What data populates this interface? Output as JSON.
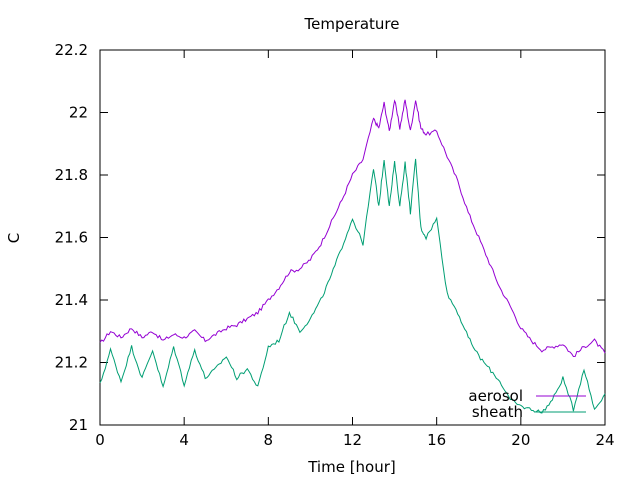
{
  "chart_data": {
    "type": "line",
    "title": "Temperature",
    "xlabel": "Time [hour]",
    "ylabel": "C",
    "xlim": [
      0,
      24
    ],
    "ylim": [
      21,
      22.2
    ],
    "xticks": [
      0,
      4,
      8,
      12,
      16,
      20,
      24
    ],
    "yticks": [
      21,
      21.2,
      21.4,
      21.6,
      21.8,
      22,
      22.2
    ],
    "xtick_labels": [
      "0",
      "4",
      "8",
      "12",
      "16",
      "20",
      "24"
    ],
    "ytick_labels": [
      "21",
      "21.2",
      "21.4",
      "21.6",
      "21.8",
      "22",
      "22.2"
    ],
    "grid": false,
    "legend_position": "bottom-right",
    "series": [
      {
        "name": "aerosol",
        "color": "#9400d3",
        "x": [
          0,
          0.5,
          1,
          1.5,
          2,
          2.5,
          3,
          3.5,
          4,
          4.5,
          5,
          5.5,
          6,
          6.5,
          7,
          7.5,
          8,
          8.5,
          9,
          9.5,
          10,
          10.5,
          11,
          11.5,
          12,
          12.5,
          13,
          13.25,
          13.5,
          13.75,
          14,
          14.25,
          14.5,
          14.75,
          15,
          15.25,
          15.5,
          16,
          16.5,
          17,
          17.5,
          18,
          18.5,
          19,
          19.5,
          20,
          20.5,
          21,
          21.5,
          22,
          22.5,
          23,
          23.5,
          24
        ],
        "y": [
          21.26,
          21.3,
          21.28,
          21.31,
          21.28,
          21.3,
          21.27,
          21.29,
          21.28,
          21.3,
          21.27,
          21.29,
          21.31,
          21.32,
          21.34,
          21.36,
          21.4,
          21.44,
          21.49,
          21.5,
          21.53,
          21.58,
          21.65,
          21.72,
          21.8,
          21.85,
          21.98,
          21.95,
          22.03,
          21.94,
          22.04,
          21.95,
          22.04,
          21.94,
          22.04,
          21.95,
          21.93,
          21.94,
          21.86,
          21.78,
          21.68,
          21.6,
          21.52,
          21.44,
          21.38,
          21.31,
          21.27,
          21.24,
          21.25,
          21.26,
          21.22,
          21.25,
          21.27,
          21.23
        ]
      },
      {
        "name": "sheath",
        "color": "#009e73",
        "x": [
          0,
          0.5,
          1,
          1.5,
          2,
          2.5,
          3,
          3.5,
          4,
          4.5,
          5,
          5.5,
          6,
          6.5,
          7,
          7.5,
          8,
          8.5,
          9,
          9.5,
          10,
          10.5,
          11,
          11.5,
          12,
          12.5,
          13,
          13.25,
          13.5,
          13.75,
          14,
          14.25,
          14.5,
          14.75,
          15,
          15.25,
          15.5,
          16,
          16.5,
          17,
          17.5,
          18,
          18.5,
          19,
          19.5,
          20,
          20.5,
          21,
          21.5,
          22,
          22.5,
          23,
          23.5,
          24
        ],
        "y": [
          21.13,
          21.24,
          21.14,
          21.25,
          21.15,
          21.24,
          21.12,
          21.25,
          21.13,
          21.24,
          21.15,
          21.18,
          21.22,
          21.15,
          21.18,
          21.12,
          21.25,
          21.27,
          21.36,
          21.3,
          21.34,
          21.4,
          21.48,
          21.57,
          21.66,
          21.58,
          21.82,
          21.7,
          21.85,
          21.7,
          21.84,
          21.7,
          21.84,
          21.68,
          21.85,
          21.63,
          21.6,
          21.66,
          21.42,
          21.36,
          21.28,
          21.22,
          21.18,
          21.14,
          21.08,
          21.06,
          21.05,
          21.04,
          21.08,
          21.15,
          21.05,
          21.18,
          21.05,
          21.1
        ]
      }
    ]
  }
}
